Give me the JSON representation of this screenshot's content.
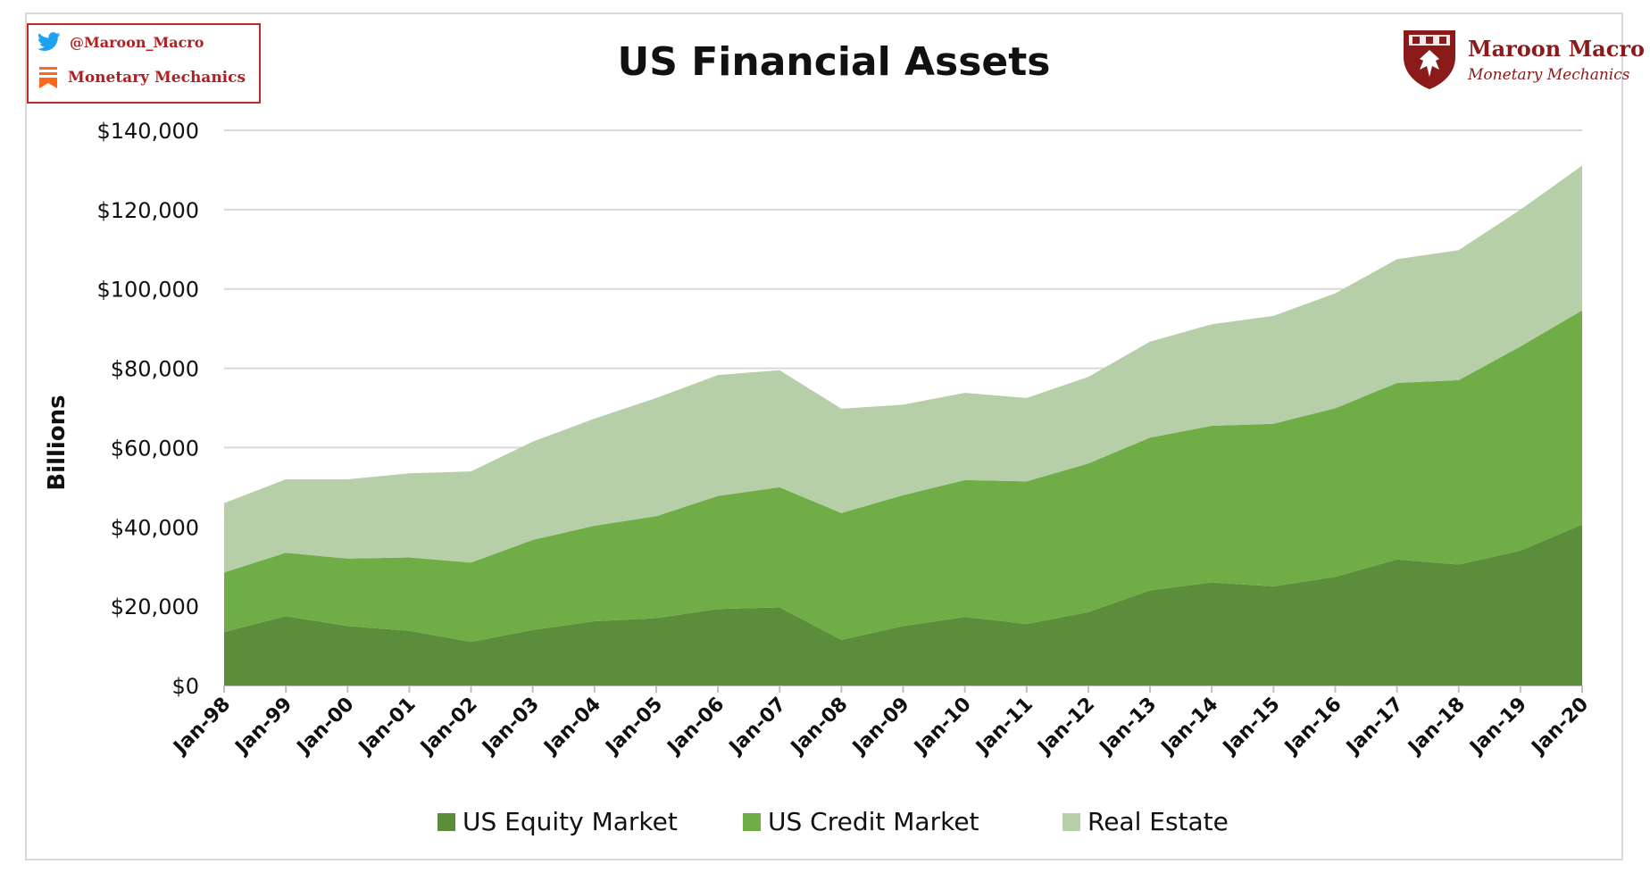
{
  "social": {
    "twitter_handle": "@Maroon_Macro",
    "substack_name": "Monetary Mechanics"
  },
  "logo": {
    "name": "Maroon Macro",
    "subtitle": "Monetary Mechanics"
  },
  "colors": {
    "equity": "#5b8d3a",
    "credit": "#70ad47",
    "real_estate": "#b6cfa8",
    "grid": "#d9d9d9",
    "brand": "#8b1a1a"
  },
  "chart_data": {
    "type": "area",
    "stacked": true,
    "title": "US Financial Assets",
    "ylabel": "Billions",
    "xlabel": "",
    "ylim": [
      0,
      140000
    ],
    "yticks": [
      0,
      20000,
      40000,
      60000,
      80000,
      100000,
      120000,
      140000
    ],
    "ytick_labels": [
      "$0",
      "$20,000",
      "$40,000",
      "$60,000",
      "$80,000",
      "$100,000",
      "$120,000",
      "$140,000"
    ],
    "grid": true,
    "legend_position": "bottom",
    "categories": [
      "Jan-98",
      "Jan-99",
      "Jan-00",
      "Jan-01",
      "Jan-02",
      "Jan-03",
      "Jan-04",
      "Jan-05",
      "Jan-06",
      "Jan-07",
      "Jan-08",
      "Jan-09",
      "Jan-10",
      "Jan-11",
      "Jan-12",
      "Jan-13",
      "Jan-14",
      "Jan-15",
      "Jan-16",
      "Jan-17",
      "Jan-18",
      "Jan-19",
      "Jan-20"
    ],
    "series": [
      {
        "name": "US Equity Market",
        "color": "#5b8d3a",
        "values": [
          13500,
          17500,
          15000,
          13800,
          11000,
          14000,
          16200,
          17000,
          19300,
          19700,
          11500,
          15000,
          17300,
          15500,
          18500,
          24000,
          26000,
          25000,
          27400,
          31800,
          30500,
          34000,
          40600
        ]
      },
      {
        "name": "US Credit Market",
        "color": "#70ad47",
        "values": [
          15000,
          16000,
          17000,
          18500,
          20000,
          22700,
          24100,
          25700,
          28500,
          30300,
          32000,
          33000,
          34500,
          36000,
          37500,
          38500,
          39500,
          41000,
          42500,
          44500,
          46500,
          51500,
          54000
        ]
      },
      {
        "name": "Real Estate",
        "color": "#b6cfa8",
        "values": [
          17500,
          18500,
          20000,
          21200,
          23000,
          24800,
          27000,
          29800,
          30500,
          29500,
          26300,
          22800,
          22000,
          21000,
          21800,
          24200,
          25600,
          27200,
          29000,
          31200,
          32800,
          34500,
          36500
        ]
      }
    ]
  }
}
